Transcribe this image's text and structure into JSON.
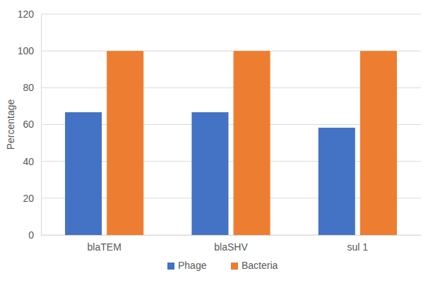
{
  "chart_data": {
    "type": "bar",
    "y_label": "Percentage",
    "categories": [
      "blaTEM",
      "blaSHV",
      "sul 1"
    ],
    "series": [
      {
        "name": "Phage",
        "color": "#4472c4",
        "values": [
          66.7,
          66.7,
          58.3
        ]
      },
      {
        "name": "Bacteria",
        "color": "#ed7d31",
        "values": [
          100,
          100,
          100
        ]
      }
    ],
    "ylim": [
      0,
      120
    ],
    "yticks": [
      0,
      20,
      40,
      60,
      80,
      100,
      120
    ],
    "grid": true,
    "legend": "bottom"
  }
}
